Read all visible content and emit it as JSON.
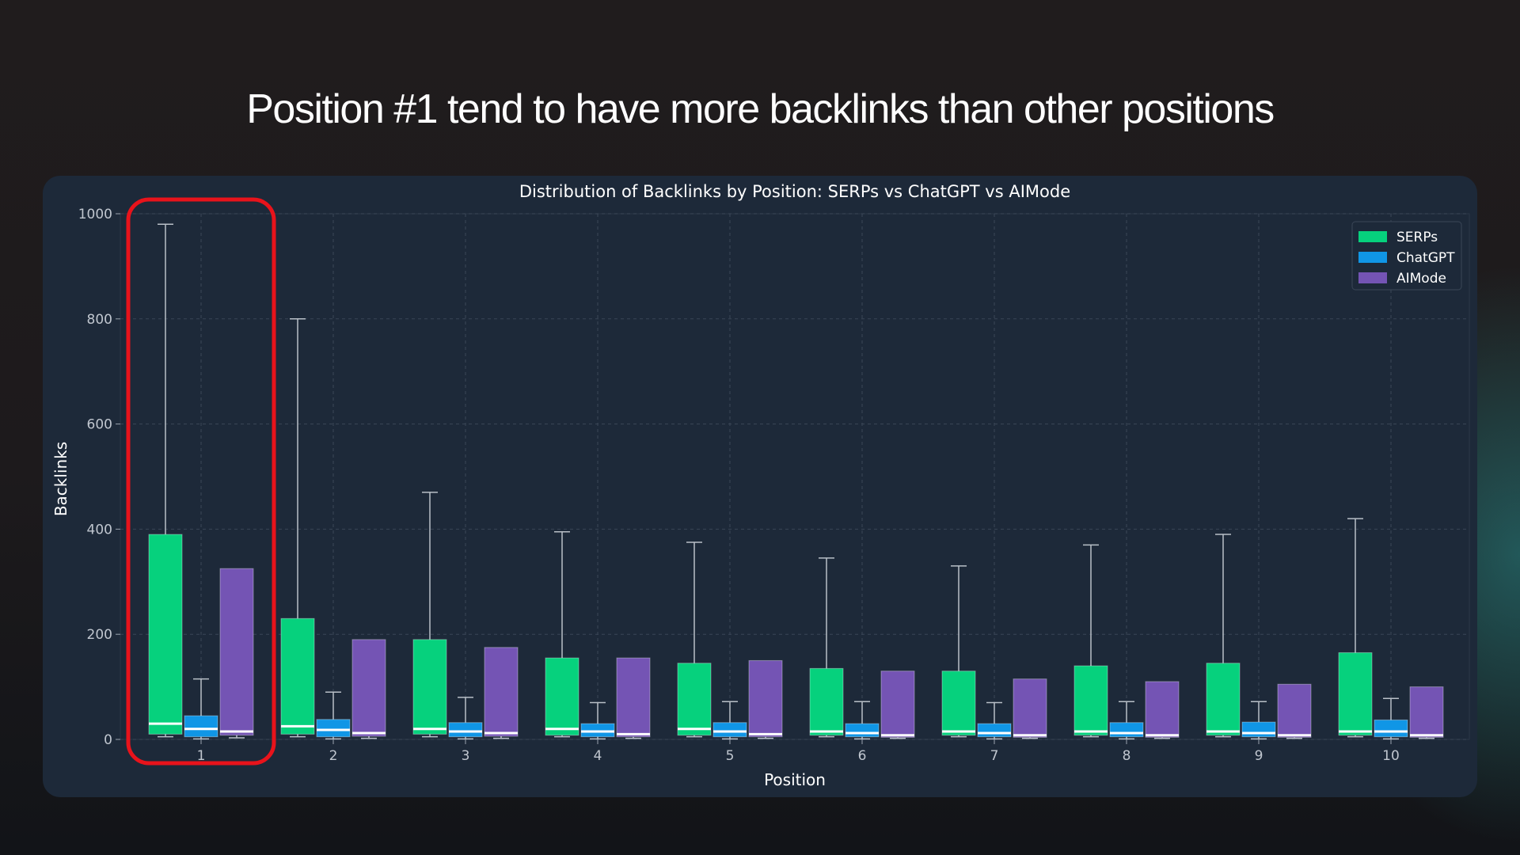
{
  "slide": {
    "title": "Position #1 tend to have more backlinks than other positions"
  },
  "highlight": {
    "category": "1"
  },
  "colors": {
    "serps": "#06d17d",
    "chatgpt": "#1096e6",
    "aimode": "#7454b4",
    "highlight": "#e8131b",
    "card": "#1d2939",
    "text": "#ffffff",
    "tick": "#c0c6cf"
  },
  "chart_data": {
    "type": "box",
    "title": "Distribution of Backlinks by Position: SERPs vs ChatGPT vs AIMode",
    "xlabel": "Position",
    "ylabel": "Backlinks",
    "ylim": [
      0,
      1000
    ],
    "yticks": [
      0,
      200,
      400,
      600,
      800,
      1000
    ],
    "grid": true,
    "legend_position": "top-right",
    "categories": [
      "1",
      "2",
      "3",
      "4",
      "5",
      "6",
      "7",
      "8",
      "9",
      "10"
    ],
    "series": [
      {
        "name": "SERPs",
        "color": "#06d17d",
        "q1": [
          10,
          10,
          10,
          8,
          8,
          8,
          8,
          8,
          8,
          8
        ],
        "median": [
          30,
          25,
          20,
          20,
          20,
          15,
          15,
          15,
          15,
          15
        ],
        "q3": [
          390,
          230,
          190,
          155,
          145,
          135,
          130,
          140,
          145,
          165
        ],
        "whisker_low": [
          5,
          5,
          5,
          5,
          5,
          5,
          5,
          5,
          5,
          5
        ],
        "whisker_high": [
          980,
          800,
          470,
          395,
          375,
          345,
          330,
          370,
          390,
          420
        ]
      },
      {
        "name": "ChatGPT",
        "color": "#1096e6",
        "q1": [
          5,
          5,
          5,
          5,
          5,
          5,
          5,
          5,
          5,
          5
        ],
        "median": [
          20,
          18,
          15,
          15,
          15,
          12,
          12,
          12,
          12,
          15
        ],
        "q3": [
          45,
          38,
          32,
          30,
          32,
          30,
          30,
          32,
          33,
          37
        ],
        "whisker_low": [
          1,
          1,
          1,
          1,
          1,
          1,
          1,
          1,
          1,
          1
        ],
        "whisker_high": [
          115,
          90,
          80,
          70,
          72,
          72,
          70,
          72,
          72,
          78
        ]
      },
      {
        "name": "AIMode",
        "color": "#7454b4",
        "q1": [
          8,
          6,
          6,
          5,
          5,
          4,
          4,
          4,
          4,
          4
        ],
        "median": [
          15,
          12,
          12,
          10,
          10,
          8,
          8,
          8,
          8,
          8
        ],
        "q3": [
          325,
          190,
          175,
          155,
          150,
          130,
          115,
          110,
          105,
          100
        ],
        "whisker_low": [
          3,
          2,
          2,
          2,
          2,
          2,
          2,
          2,
          2,
          2
        ],
        "whisker_high": [
          325,
          190,
          175,
          155,
          150,
          130,
          115,
          110,
          105,
          100
        ]
      }
    ]
  }
}
